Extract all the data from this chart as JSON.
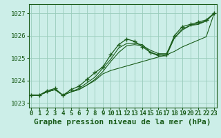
{
  "title": "Graphe pression niveau de la mer (hPa)",
  "background_color": "#cceee8",
  "grid_color": "#99ccbb",
  "line_color": "#1a5c1a",
  "x_ticks": [
    0,
    1,
    2,
    3,
    4,
    5,
    6,
    7,
    8,
    9,
    10,
    11,
    12,
    13,
    14,
    15,
    16,
    17,
    18,
    19,
    20,
    21,
    22,
    23
  ],
  "ylim": [
    1022.8,
    1027.4
  ],
  "xlim": [
    -0.3,
    23.3
  ],
  "yticks": [
    1023,
    1024,
    1025,
    1026,
    1027
  ],
  "series": [
    [
      1023.35,
      1023.35,
      1023.5,
      1023.6,
      1023.35,
      1023.5,
      1023.65,
      1023.9,
      1024.15,
      1024.55,
      1024.95,
      1025.45,
      1025.65,
      1025.65,
      1025.6,
      1025.25,
      1025.1,
      1025.1,
      1025.9,
      1026.3,
      1026.45,
      1026.5,
      1026.65,
      1027.0
    ],
    [
      1023.35,
      1023.35,
      1023.5,
      1023.6,
      1023.35,
      1023.5,
      1023.6,
      1023.8,
      1024.0,
      1024.3,
      1024.45,
      1024.55,
      1024.65,
      1024.75,
      1024.85,
      1024.95,
      1025.05,
      1025.15,
      1025.3,
      1025.5,
      1025.65,
      1025.8,
      1025.95,
      1027.0
    ],
    [
      1023.35,
      1023.35,
      1023.5,
      1023.6,
      1023.35,
      1023.5,
      1023.6,
      1023.8,
      1024.05,
      1024.4,
      1024.85,
      1025.25,
      1025.55,
      1025.6,
      1025.55,
      1025.35,
      1025.2,
      1025.2,
      1025.9,
      1026.25,
      1026.45,
      1026.55,
      1026.65,
      1027.0
    ]
  ],
  "marked_series": [
    1023.35,
    1023.35,
    1023.55,
    1023.65,
    1023.35,
    1023.6,
    1023.75,
    1024.05,
    1024.35,
    1024.6,
    1025.15,
    1025.6,
    1025.85,
    1025.75,
    1025.5,
    1025.25,
    1025.15,
    1025.15,
    1026.0,
    1026.4,
    1026.5,
    1026.6,
    1026.7,
    1027.0
  ],
  "tick_fontsize": 6.5,
  "title_fontsize": 8
}
